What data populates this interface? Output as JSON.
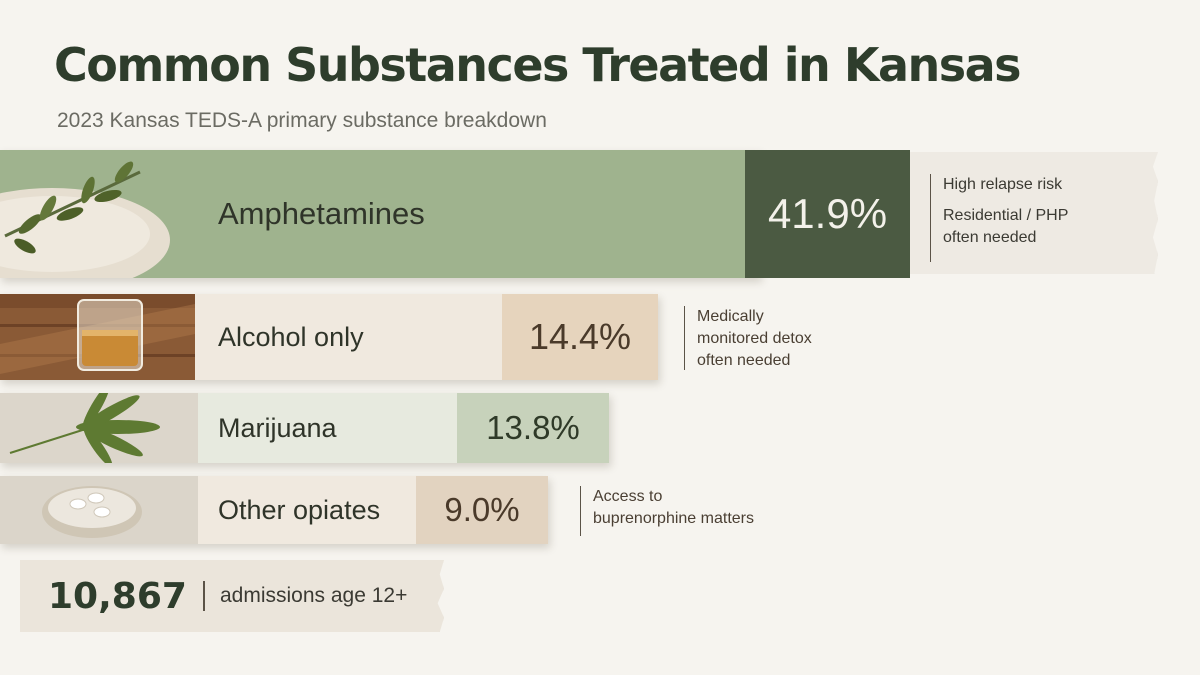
{
  "title": "Common Substances Treated in Kansas",
  "subtitle": "2023 Kansas TEDS-A primary substance breakdown",
  "chart_data": {
    "type": "bar",
    "title": "Common Substances Treated in Kansas",
    "subtitle": "2023 Kansas TEDS-A primary substance breakdown",
    "categories": [
      "Amphetamines",
      "Alcohol only",
      "Marijuana",
      "Other opiates"
    ],
    "values": [
      41.9,
      14.4,
      13.8,
      9.0
    ],
    "value_labels": [
      "41.9%",
      "14.4%",
      "13.8%",
      "9.0%"
    ],
    "unit": "%",
    "annotations": [
      {
        "category": "Amphetamines",
        "lines": [
          "High relapse risk",
          "Residential / PHP",
          "often needed"
        ]
      },
      {
        "category": "Alcohol only",
        "lines": [
          "Medically",
          "monitored detox",
          "often needed"
        ]
      },
      {
        "category": "Other opiates",
        "lines": [
          "Access to",
          "buprenorphine matters"
        ]
      }
    ]
  },
  "total": {
    "value": "10,867",
    "label": "admissions age 12+"
  },
  "icons": [
    "olive-branch-bowl-icon",
    "whiskey-glass-icon",
    "cannabis-leaf-icon",
    "pill-bowl-icon"
  ],
  "colors": {
    "title": "#2e3d2c",
    "amphetamines_bar": "#9fb38e",
    "amphetamines_value": "#4b5a42",
    "alcohol_bar": "#f0e9df",
    "alcohol_value": "#e6d4bd",
    "marijuana_bar": "#e7eadf",
    "marijuana_value": "#c7d2bb",
    "opiates_bar": "#f0e9df",
    "opiates_value": "#e2d3c0"
  }
}
